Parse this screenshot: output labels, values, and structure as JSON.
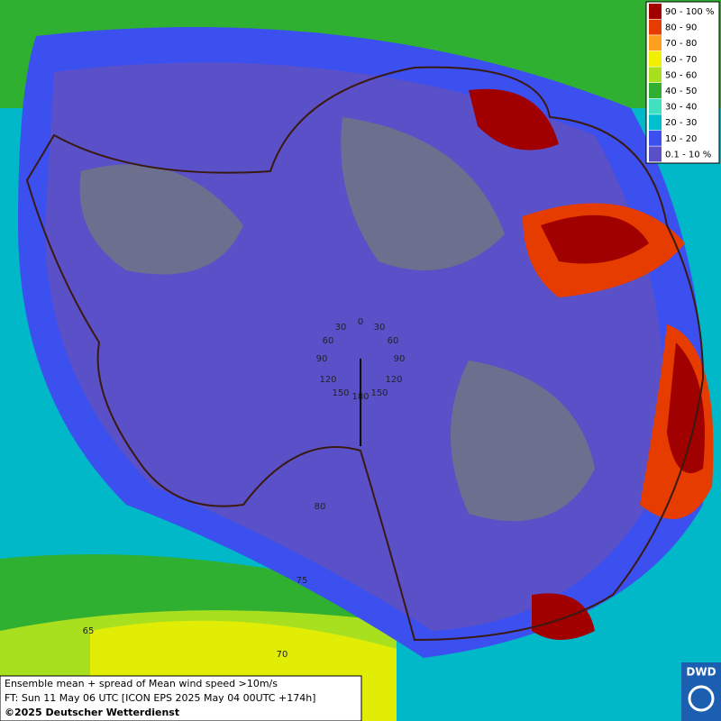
{
  "legend": {
    "items": [
      {
        "label": "90 - 100 %",
        "color": "#a00000"
      },
      {
        "label": "80 - 90",
        "color": "#e63c00"
      },
      {
        "label": "70 - 80",
        "color": "#ffa020"
      },
      {
        "label": "60 - 70",
        "color": "#f0f000"
      },
      {
        "label": "50 - 60",
        "color": "#a8e020"
      },
      {
        "label": "40 - 50",
        "color": "#30b030"
      },
      {
        "label": "30 - 40",
        "color": "#40e0c0"
      },
      {
        "label": "20 - 30",
        "color": "#00c0d0"
      },
      {
        "label": "10 - 20",
        "color": "#3c50f0"
      },
      {
        "label": "0.1 - 10 %",
        "color": "#5a50c8"
      }
    ]
  },
  "map_labels": [
    "0",
    "30",
    "30",
    "60",
    "60",
    "90",
    "90",
    "120",
    "120",
    "150",
    "150",
    "180",
    "80",
    "75",
    "65",
    "70"
  ],
  "caption": {
    "lines": [
      "Ensemble mean + spread of Mean wind speed >10m/s",
      "FT: Sun 11 May 06 UTC [ICON EPS 2025 May 04 00UTC +174h]",
      "©2025 Deutscher Wetterdienst"
    ]
  },
  "logo": {
    "text": "DWD"
  }
}
